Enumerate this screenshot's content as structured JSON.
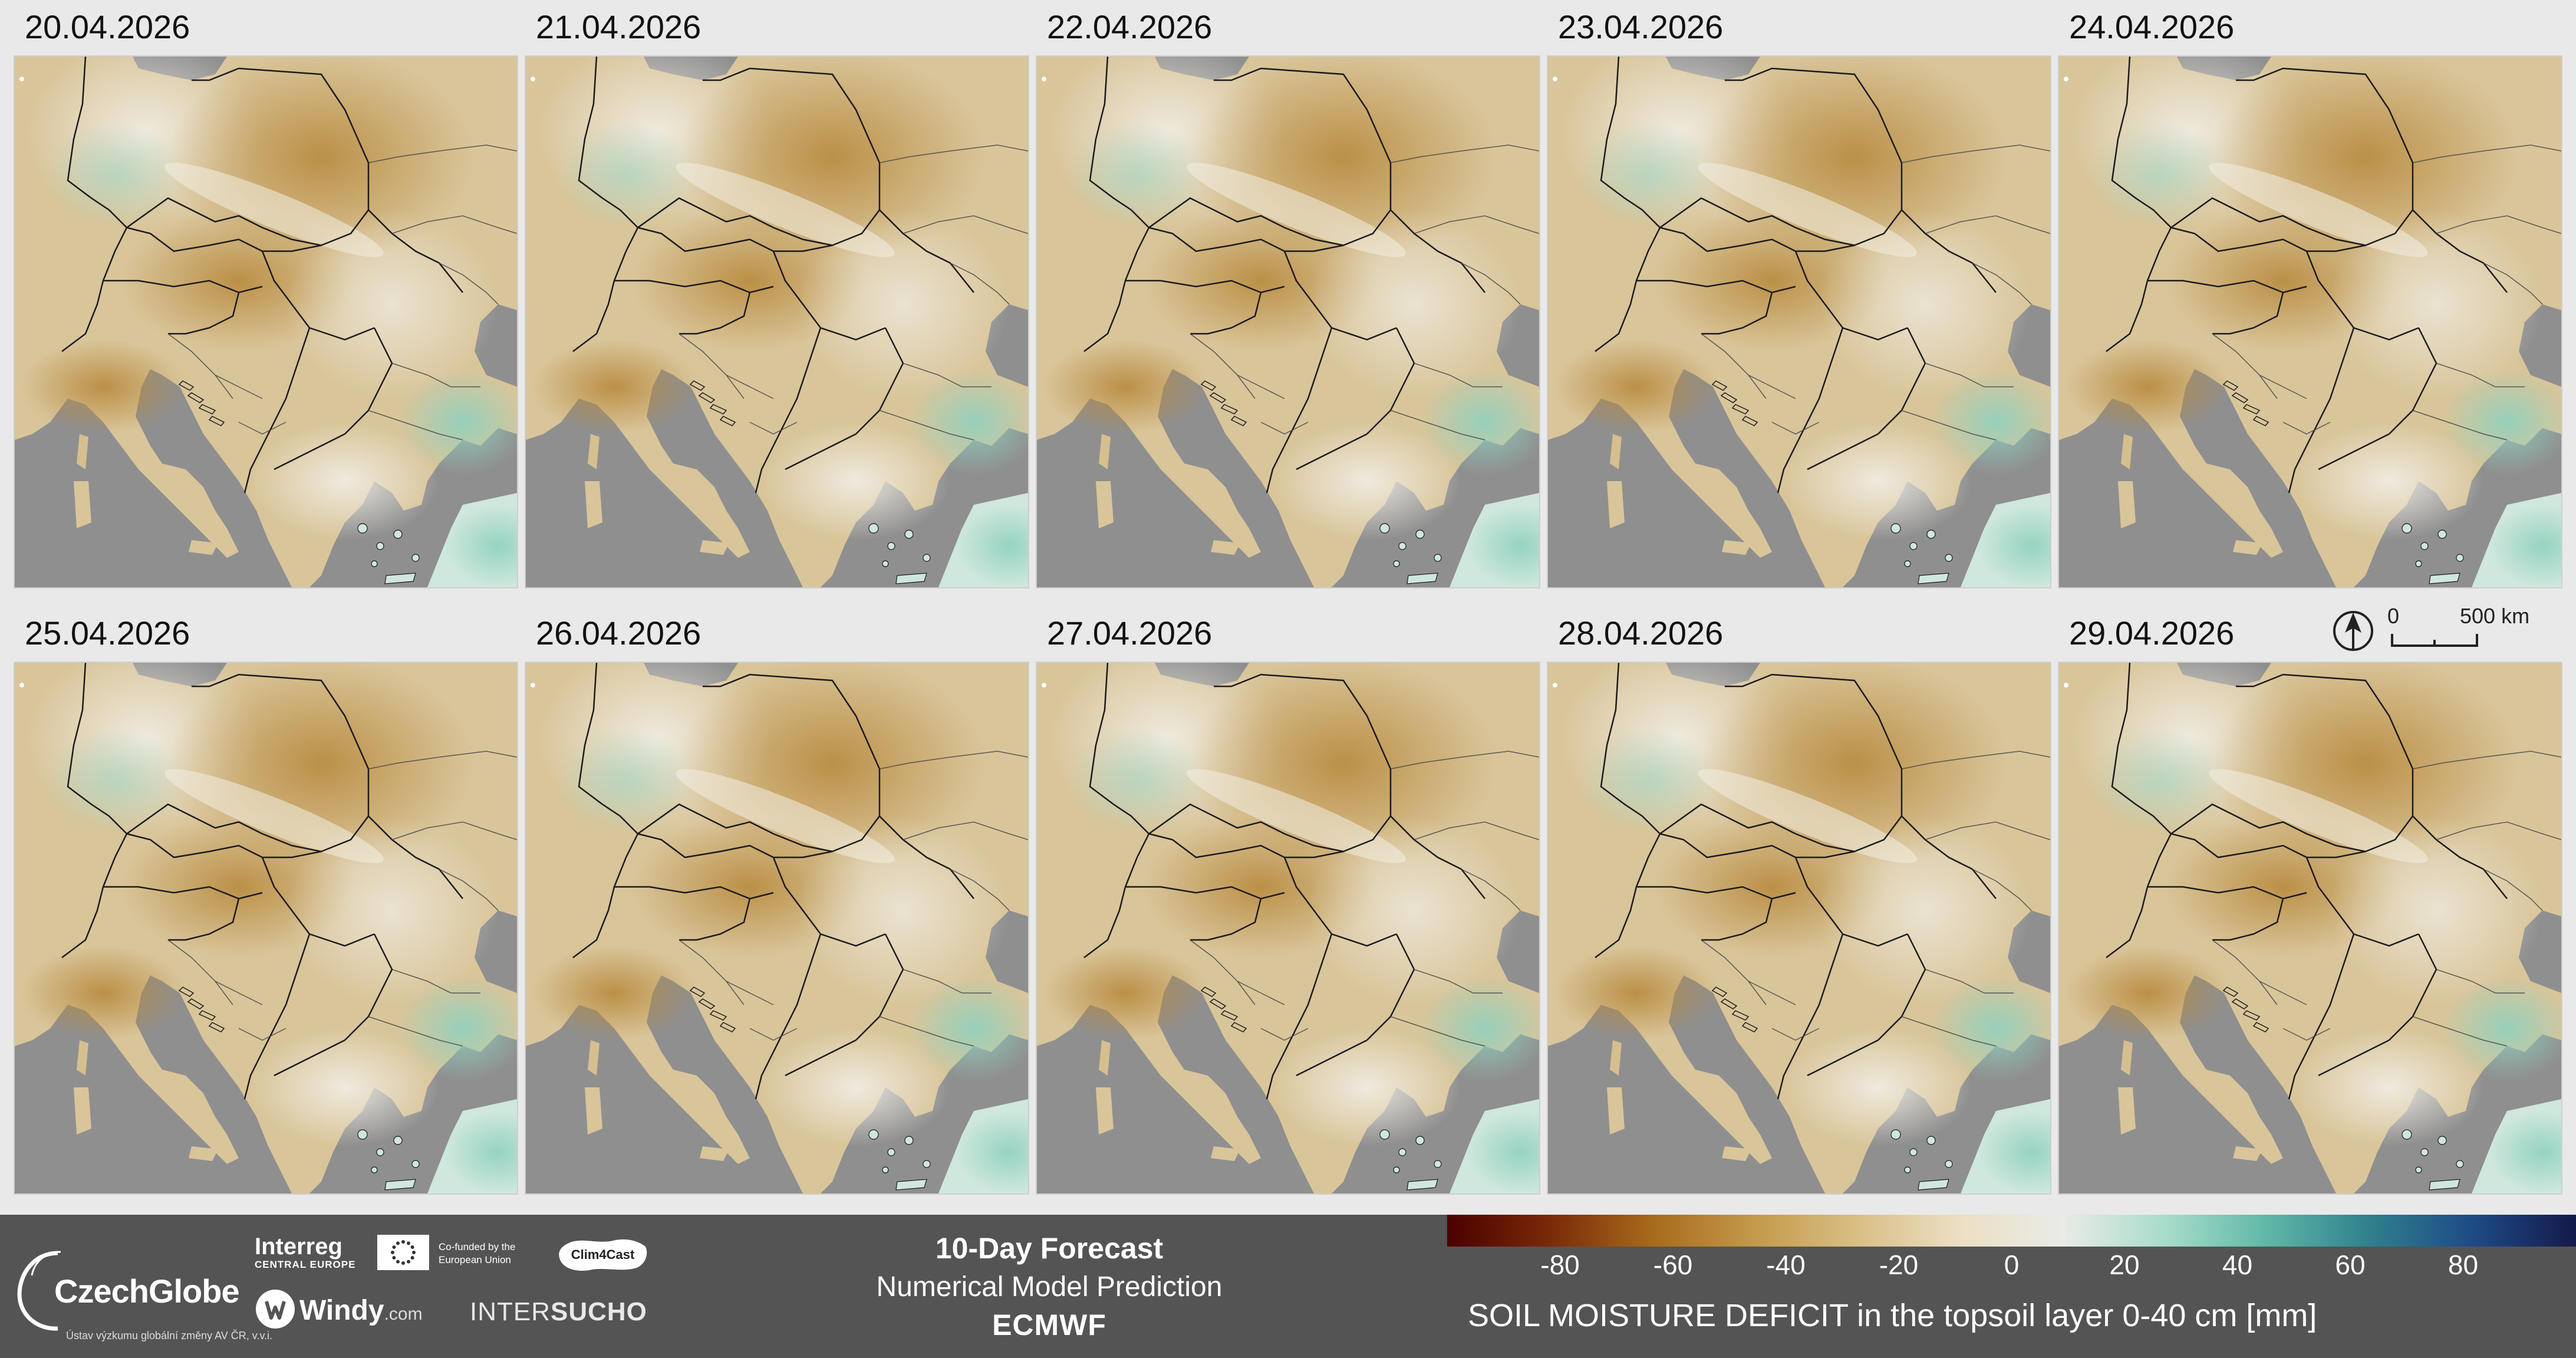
{
  "forecast_dates": [
    "20.04.2026",
    "21.04.2026",
    "22.04.2026",
    "23.04.2026",
    "24.04.2026",
    "25.04.2026",
    "26.04.2026",
    "27.04.2026",
    "28.04.2026",
    "29.04.2026"
  ],
  "scale_bar": {
    "start_label": "0",
    "end_label": "500 km"
  },
  "footer": {
    "czechglobe_name": "CzechGlobe",
    "czechglobe_subtitle": "Ústav výzkumu globální změny AV ČR, v.v.i.",
    "interreg_name": "Interreg",
    "interreg_subtitle": "CENTRAL EUROPE",
    "eu_text": "Co-funded by the European Union",
    "clim4cast": "Clim4Cast",
    "windy_name": "Windy",
    "windy_suffix": ".com",
    "intersucho_prefix": "INTER",
    "intersucho_suffix": "SUCHO",
    "forecast_title": "10-Day Forecast",
    "forecast_subtitle": "Numerical Model Prediction",
    "model_name": "ECMWF"
  },
  "legend": {
    "title": "SOIL MOISTURE DEFICIT  in the topsoil layer 0-40 cm [mm]",
    "ticks": [
      "-80",
      "-60",
      "-40",
      "-20",
      "0",
      "20",
      "40",
      "60",
      "80"
    ],
    "range": [
      -100,
      100
    ],
    "colors": [
      "#4a0000",
      "#7a2a08",
      "#a86a1c",
      "#c49a4a",
      "#d9bf86",
      "#ecdfc4",
      "#e9ebe6",
      "#a8dccb",
      "#5fb7a6",
      "#2f7f8d",
      "#1e4a86",
      "#141a4a"
    ]
  },
  "map_colors": {
    "sea": "#8f8f8f",
    "dry": "#c8a466",
    "neutral": "#ece6d6",
    "wet": "#8fd1bf",
    "border": "#1a1a1a"
  }
}
